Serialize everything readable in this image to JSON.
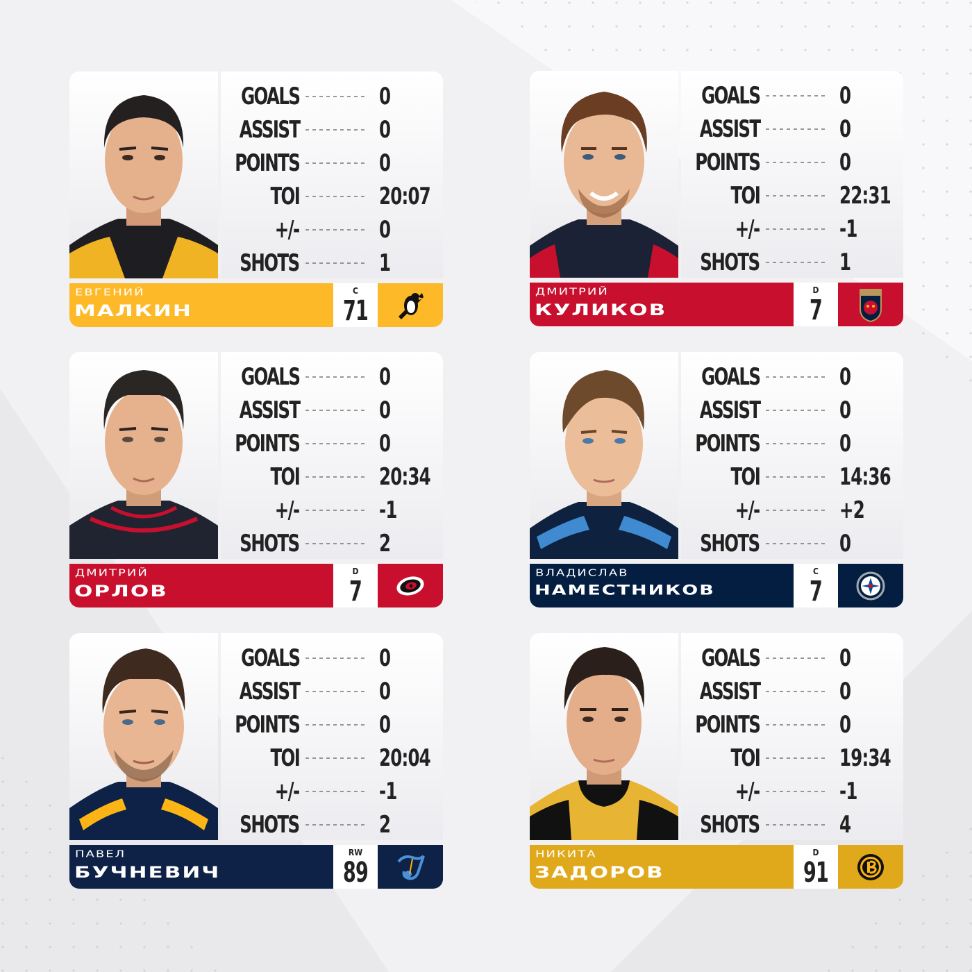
{
  "stat_labels": {
    "goals": "GOALS",
    "assist": "ASSIST",
    "points": "POINTS",
    "toi": "TOI",
    "plus_minus": "+/-",
    "shots": "SHOTS"
  },
  "colors": {
    "background": "#f1f1f3",
    "penguins": "#fdb927",
    "panthers": "#c8102e",
    "hurricanes": "#c8102e",
    "jets": "#041e42",
    "blues": "#002f6c",
    "bruins": "#e0a81b"
  },
  "players": [
    {
      "first_name": "ЕВГЕНИЙ",
      "last_name": "МАЛКИН",
      "position": "C",
      "number": "71",
      "team_logo": "penguins-logo",
      "team_color": "#fdb927",
      "stats": {
        "goals": "0",
        "assist": "0",
        "points": "0",
        "toi": "20:07",
        "plus_minus": "0",
        "shots": "1"
      }
    },
    {
      "first_name": "ДМИТРИЙ",
      "last_name": "КУЛИКОВ",
      "position": "D",
      "number": "7",
      "team_logo": "panthers-logo",
      "team_color": "#c8102e",
      "stats": {
        "goals": "0",
        "assist": "0",
        "points": "0",
        "toi": "22:31",
        "plus_minus": "-1",
        "shots": "1"
      }
    },
    {
      "first_name": "ДМИТРИЙ",
      "last_name": "ОРЛОВ",
      "position": "D",
      "number": "7",
      "team_logo": "hurricanes-logo",
      "team_color": "#c8102e",
      "stats": {
        "goals": "0",
        "assist": "0",
        "points": "0",
        "toi": "20:34",
        "plus_minus": "-1",
        "shots": "2"
      }
    },
    {
      "first_name": "ВЛАДИСЛАВ",
      "last_name": "НАМЕСТНИКОВ",
      "position": "C",
      "number": "7",
      "team_logo": "jets-logo",
      "team_color": "#041e42",
      "stats": {
        "goals": "0",
        "assist": "0",
        "points": "0",
        "toi": "14:36",
        "plus_minus": "+2",
        "shots": "0"
      }
    },
    {
      "first_name": "ПАВЕЛ",
      "last_name": "БУЧНЕВИЧ",
      "position": "RW",
      "number": "89",
      "team_logo": "blues-logo",
      "team_color": "#002f6c",
      "stats": {
        "goals": "0",
        "assist": "0",
        "points": "0",
        "toi": "20:04",
        "plus_minus": "-1",
        "shots": "2"
      }
    },
    {
      "first_name": "НИКИТА",
      "last_name": "ЗАДОРОВ",
      "position": "D",
      "number": "91",
      "team_logo": "bruins-logo",
      "team_color": "#e0a81b",
      "stats": {
        "goals": "0",
        "assist": "0",
        "points": "0",
        "toi": "19:34",
        "plus_minus": "-1",
        "shots": "4"
      }
    }
  ]
}
